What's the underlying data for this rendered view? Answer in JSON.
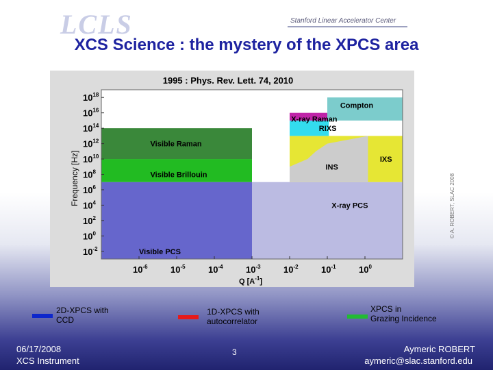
{
  "header": {
    "logo_text": "LCLS",
    "lab_name": "Stanford Linear Accelerator Center",
    "title": "XCS Science : the mystery of the XPCS area"
  },
  "chart_data": {
    "type": "region-map",
    "title": "1995 : Phys. Rev. Lett. 74, 2010",
    "xlabel_main": "Q [A",
    "xlabel_exp": "-1",
    "xlabel_close": "]",
    "ylabel": "Frequency [Hz]",
    "x_scale": "log",
    "y_scale": "log",
    "xlim": [
      1e-07,
      10
    ],
    "ylim": [
      0.001,
      1e+19
    ],
    "x_ticks": [
      {
        "value": 1e-06,
        "base": "10",
        "exp": "-6"
      },
      {
        "value": 1e-05,
        "base": "10",
        "exp": "-5"
      },
      {
        "value": 0.0001,
        "base": "10",
        "exp": "-4"
      },
      {
        "value": 0.001,
        "base": "10",
        "exp": "-3"
      },
      {
        "value": 0.01,
        "base": "10",
        "exp": "-2"
      },
      {
        "value": 0.1,
        "base": "10",
        "exp": "-1"
      },
      {
        "value": 1,
        "base": "10",
        "exp": "0"
      }
    ],
    "y_ticks": [
      {
        "value": 1e+18,
        "base": "10",
        "exp": "18"
      },
      {
        "value": 1e+16,
        "base": "10",
        "exp": "16"
      },
      {
        "value": 100000000000000.0,
        "base": "10",
        "exp": "14"
      },
      {
        "value": 1000000000000.0,
        "base": "10",
        "exp": "12"
      },
      {
        "value": 10000000000.0,
        "base": "10",
        "exp": "10"
      },
      {
        "value": 100000000.0,
        "base": "10",
        "exp": "8"
      },
      {
        "value": 1000000.0,
        "base": "10",
        "exp": "6"
      },
      {
        "value": 10000.0,
        "base": "10",
        "exp": "4"
      },
      {
        "value": 100.0,
        "base": "10",
        "exp": "2"
      },
      {
        "value": 1,
        "base": "10",
        "exp": "0"
      },
      {
        "value": 0.01,
        "base": "10",
        "exp": "-2"
      }
    ],
    "regions": [
      {
        "id": "visible-pcs",
        "label": "Visible PCS",
        "color": "#6666cc",
        "x": [
          1e-07,
          0.001
        ],
        "y": [
          0.001,
          10000000.0
        ],
        "label_at": [
          1e-06,
          0.01
        ]
      },
      {
        "id": "xray-pcs",
        "label": "X-ray PCS",
        "color": "#bbbbe2",
        "x": [
          0.001,
          10
        ],
        "y": [
          0.001,
          10000000.0
        ],
        "label_at": [
          0.13,
          10000.0
        ]
      },
      {
        "id": "visible-brillouin",
        "label": "Visible Brillouin",
        "color": "#22bb22",
        "x": [
          1e-07,
          0.001
        ],
        "y": [
          10000000.0,
          10000000000.0
        ],
        "label_at": [
          2e-06,
          100000000.0
        ]
      },
      {
        "id": "visible-raman",
        "label": "Visible Raman",
        "color": "#3a883a",
        "x": [
          1e-07,
          0.001
        ],
        "y": [
          10000000000.0,
          100000000000000.0
        ],
        "label_at": [
          2e-06,
          1000000000000.0
        ]
      },
      {
        "id": "ixs",
        "label": "IXS",
        "color": "#e6e634",
        "x": [
          0.01,
          10
        ],
        "y": [
          10000000.0,
          10000000000000.0
        ],
        "label_at": [
          2.5,
          10000000000.0
        ]
      },
      {
        "id": "rixs",
        "label": "RIXS",
        "color": "#33dcee",
        "x": [
          0.01,
          0.11
        ],
        "y": [
          10000000000000.0,
          1000000000000000.0
        ],
        "label_at": [
          0.06,
          100000000000000.0
        ]
      },
      {
        "id": "xray-raman",
        "label": "X-ray Raman",
        "color": "#c024a8",
        "x": [
          0.01,
          0.11
        ],
        "y": [
          1000000000000000.0,
          1e+16
        ],
        "label_at": [
          0.011,
          1600000000000000.0
        ]
      },
      {
        "id": "compton",
        "label": "Compton",
        "color": "#7ccccc",
        "x": [
          0.1,
          10
        ],
        "y": [
          1000000000000000.0,
          1e+18
        ],
        "label_at": [
          0.22,
          1e+17
        ]
      },
      {
        "id": "ins",
        "label": "INS",
        "color": "#cccccc",
        "polygon": [
          [
            0.01,
            10000000.0
          ],
          [
            1.2,
            10000000.0
          ],
          [
            1.2,
            10000000000000.0
          ],
          [
            0.1,
            1000000000000.0
          ],
          [
            0.05,
            100000000000.0
          ],
          [
            0.03,
            10000000000.0
          ],
          [
            0.01,
            1000000000.0
          ]
        ],
        "label_at": [
          0.09,
          1000000000.0
        ]
      }
    ]
  },
  "figure": {
    "author_vertical": "© A. ROBERT, SLAC 2008"
  },
  "legend": [
    {
      "line1": "2D-XPCS with",
      "line2": "CCD",
      "color": "#0d26cc"
    },
    {
      "line1": "1D-XPCS with",
      "line2": "autocorrelator",
      "color": "#e61a1a"
    },
    {
      "line1": "XPCS in",
      "line2": "Grazing Incidence",
      "color": "#22bb33"
    }
  ],
  "footer": {
    "date": "06/17/2008",
    "subtitle": "XCS Instrument",
    "page": "3",
    "author": "Aymeric ROBERT",
    "email": "aymeric@slac.stanford.edu"
  }
}
